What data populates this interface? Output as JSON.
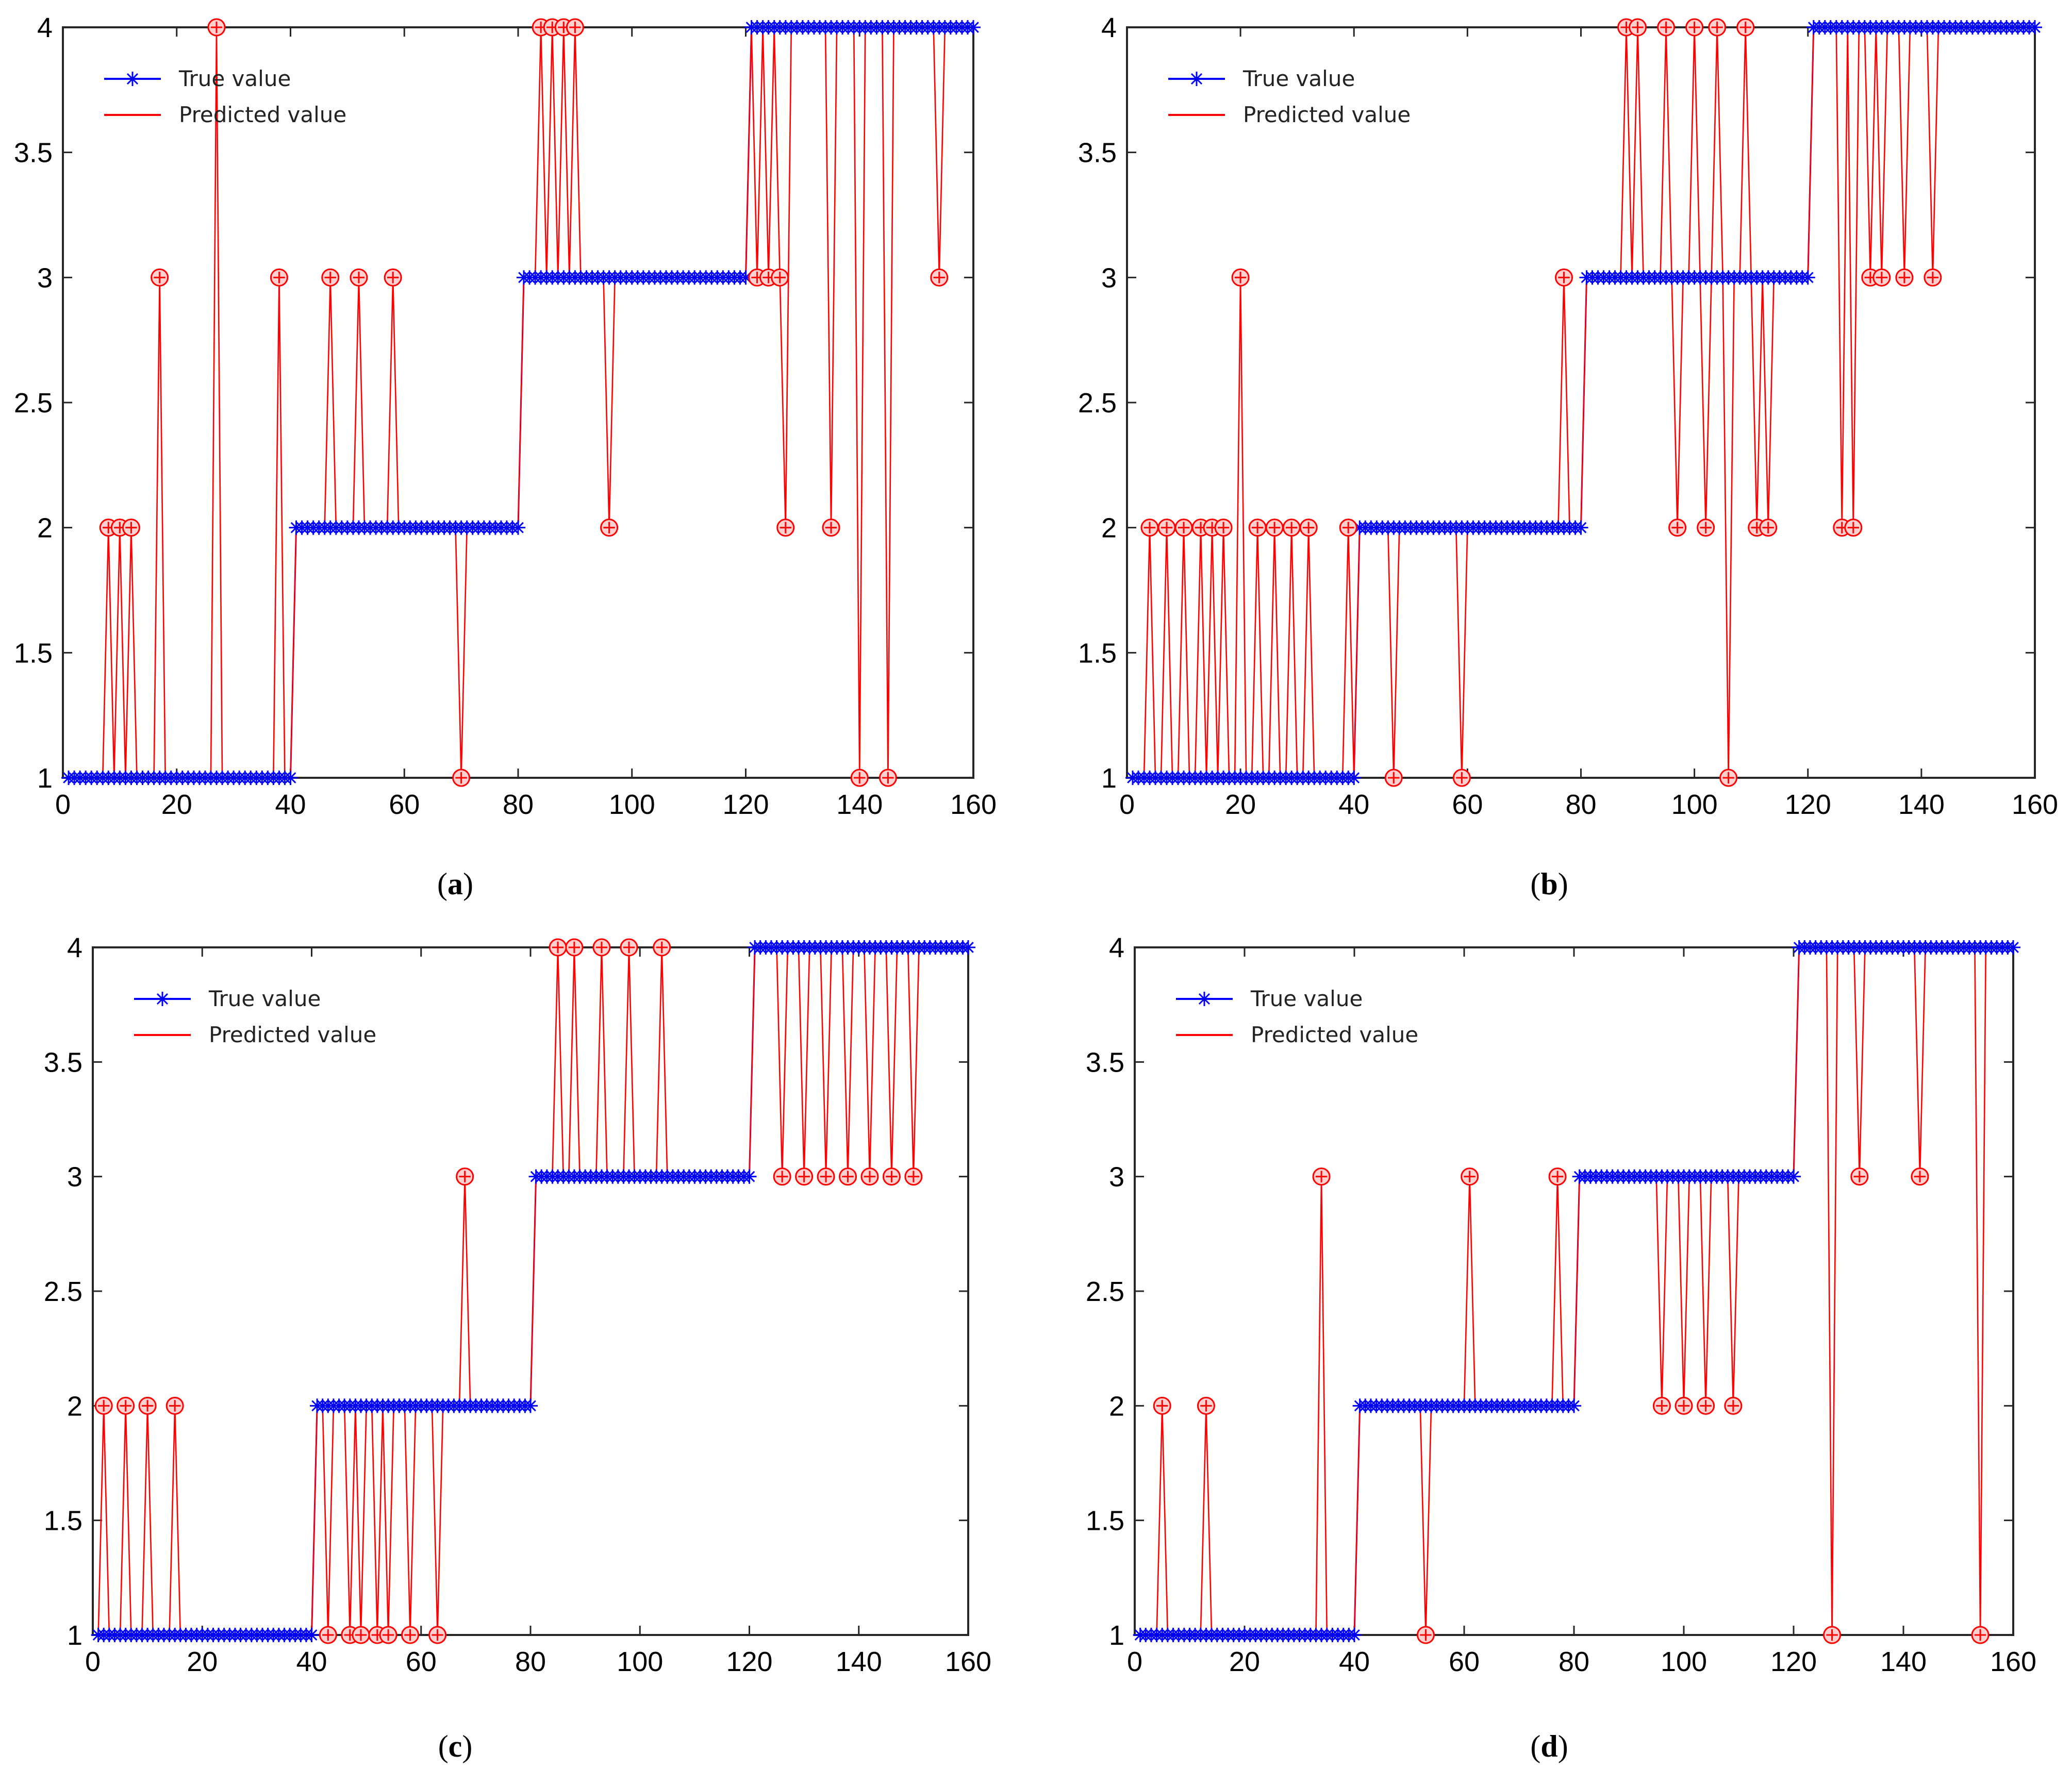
{
  "chart_data": [
    {
      "type": "line",
      "panel": "a",
      "caption_letter": "a",
      "xlim": [
        0,
        160
      ],
      "ylim": [
        1,
        4
      ],
      "xticks": [
        "0",
        "20",
        "40",
        "60",
        "80",
        "100",
        "120",
        "140",
        "160"
      ],
      "yticks": [
        "1",
        "1.5",
        "2",
        "2.5",
        "3",
        "3.5",
        "4"
      ],
      "legend": [
        "True value",
        "Predicted value"
      ],
      "series": [
        {
          "name": "True value",
          "color": "#0000ff",
          "marker": "asterisk",
          "x_start": 1,
          "segments": [
            [
              40,
              1
            ],
            [
              40,
              2
            ],
            [
              40,
              3
            ],
            [
              40,
              4
            ]
          ]
        },
        {
          "name": "Predicted value",
          "color": "#ff0000",
          "marker": "circle",
          "deviations": [
            [
              8,
              2
            ],
            [
              10,
              2
            ],
            [
              12,
              2
            ],
            [
              17,
              3
            ],
            [
              27,
              4
            ],
            [
              38,
              3
            ],
            [
              47,
              3
            ],
            [
              52,
              3
            ],
            [
              58,
              3
            ],
            [
              70,
              1
            ],
            [
              84,
              4
            ],
            [
              86,
              4
            ],
            [
              88,
              4
            ],
            [
              90,
              4
            ],
            [
              96,
              2
            ],
            [
              122,
              3
            ],
            [
              124,
              3
            ],
            [
              126,
              3
            ],
            [
              127,
              2
            ],
            [
              135,
              2
            ],
            [
              140,
              1
            ],
            [
              145,
              1
            ],
            [
              154,
              3
            ]
          ]
        }
      ]
    },
    {
      "type": "line",
      "panel": "b",
      "caption_letter": "b",
      "xlim": [
        0,
        160
      ],
      "ylim": [
        1,
        4
      ],
      "xticks": [
        "0",
        "20",
        "40",
        "60",
        "80",
        "100",
        "120",
        "140",
        "160"
      ],
      "yticks": [
        "1",
        "1.5",
        "2",
        "2.5",
        "3",
        "3.5",
        "4"
      ],
      "legend": [
        "True value",
        "Predicted value"
      ],
      "series": [
        {
          "name": "True value",
          "color": "#0000ff",
          "marker": "asterisk",
          "x_start": 1,
          "segments": [
            [
              40,
              1
            ],
            [
              40,
              2
            ],
            [
              40,
              3
            ],
            [
              40,
              4
            ]
          ]
        },
        {
          "name": "Predicted value",
          "color": "#ff0000",
          "marker": "circle",
          "deviations": [
            [
              4,
              2
            ],
            [
              7,
              2
            ],
            [
              10,
              2
            ],
            [
              13,
              2
            ],
            [
              15,
              2
            ],
            [
              17,
              2
            ],
            [
              20,
              3
            ],
            [
              23,
              2
            ],
            [
              26,
              2
            ],
            [
              29,
              2
            ],
            [
              32,
              2
            ],
            [
              39,
              2
            ],
            [
              47,
              1
            ],
            [
              59,
              1
            ],
            [
              77,
              3
            ],
            [
              88,
              4
            ],
            [
              90,
              4
            ],
            [
              95,
              4
            ],
            [
              97,
              2
            ],
            [
              100,
              4
            ],
            [
              102,
              2
            ],
            [
              104,
              4
            ],
            [
              106,
              1
            ],
            [
              109,
              4
            ],
            [
              111,
              2
            ],
            [
              113,
              2
            ],
            [
              126,
              2
            ],
            [
              128,
              2
            ],
            [
              131,
              3
            ],
            [
              133,
              3
            ],
            [
              137,
              3
            ],
            [
              142,
              3
            ]
          ]
        }
      ]
    },
    {
      "type": "line",
      "panel": "c",
      "caption_letter": "c",
      "xlim": [
        0,
        160
      ],
      "ylim": [
        1,
        4
      ],
      "xticks": [
        "0",
        "20",
        "40",
        "60",
        "80",
        "100",
        "120",
        "140",
        "160"
      ],
      "yticks": [
        "1",
        "1.5",
        "2",
        "2.5",
        "3",
        "3.5",
        "4"
      ],
      "legend": [
        "True value",
        "Predicted value"
      ],
      "series": [
        {
          "name": "True value",
          "color": "#0000ff",
          "marker": "asterisk",
          "x_start": 1,
          "segments": [
            [
              40,
              1
            ],
            [
              40,
              2
            ],
            [
              40,
              3
            ],
            [
              40,
              4
            ]
          ]
        },
        {
          "name": "Predicted value",
          "color": "#ff0000",
          "marker": "circle",
          "deviations": [
            [
              2,
              2
            ],
            [
              6,
              2
            ],
            [
              10,
              2
            ],
            [
              15,
              2
            ],
            [
              43,
              1
            ],
            [
              47,
              1
            ],
            [
              49,
              1
            ],
            [
              52,
              1
            ],
            [
              54,
              1
            ],
            [
              58,
              1
            ],
            [
              63,
              1
            ],
            [
              68,
              3
            ],
            [
              85,
              4
            ],
            [
              88,
              4
            ],
            [
              93,
              4
            ],
            [
              98,
              4
            ],
            [
              104,
              4
            ],
            [
              126,
              3
            ],
            [
              130,
              3
            ],
            [
              134,
              3
            ],
            [
              138,
              3
            ],
            [
              142,
              3
            ],
            [
              146,
              3
            ],
            [
              150,
              3
            ]
          ]
        }
      ]
    },
    {
      "type": "line",
      "panel": "d",
      "caption_letter": "d",
      "xlim": [
        0,
        160
      ],
      "ylim": [
        1,
        4
      ],
      "xticks": [
        "0",
        "20",
        "40",
        "60",
        "80",
        "100",
        "120",
        "140",
        "160"
      ],
      "yticks": [
        "1",
        "1.5",
        "2",
        "2.5",
        "3",
        "3.5",
        "4"
      ],
      "legend": [
        "True value",
        "Predicted value"
      ],
      "series": [
        {
          "name": "True value",
          "color": "#0000ff",
          "marker": "asterisk",
          "x_start": 1,
          "segments": [
            [
              40,
              1
            ],
            [
              40,
              2
            ],
            [
              40,
              3
            ],
            [
              40,
              4
            ]
          ]
        },
        {
          "name": "Predicted value",
          "color": "#ff0000",
          "marker": "circle",
          "deviations": [
            [
              5,
              2
            ],
            [
              13,
              2
            ],
            [
              34,
              3
            ],
            [
              53,
              1
            ],
            [
              61,
              3
            ],
            [
              77,
              3
            ],
            [
              96,
              2
            ],
            [
              100,
              2
            ],
            [
              104,
              2
            ],
            [
              109,
              2
            ],
            [
              127,
              1
            ],
            [
              132,
              3
            ],
            [
              143,
              3
            ],
            [
              154,
              1
            ]
          ]
        }
      ]
    }
  ]
}
